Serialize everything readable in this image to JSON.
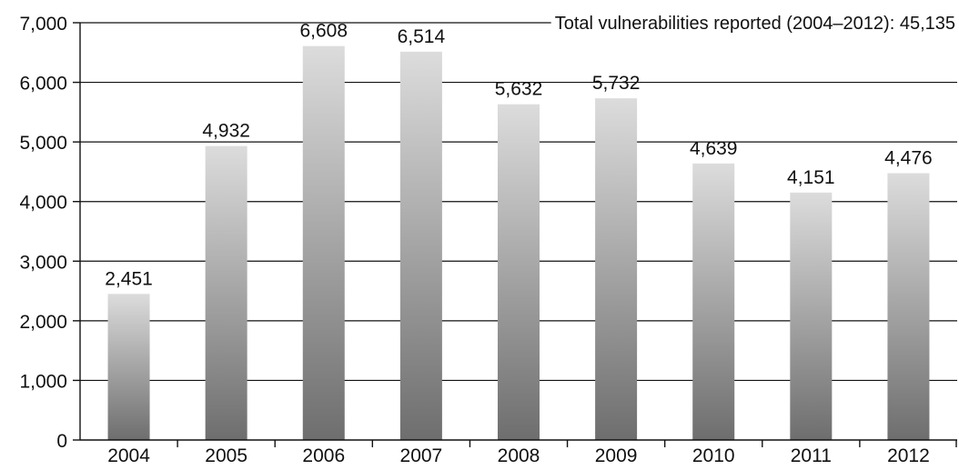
{
  "chart_data": {
    "type": "bar",
    "categories": [
      "2004",
      "2005",
      "2006",
      "2007",
      "2008",
      "2009",
      "2010",
      "2011",
      "2012"
    ],
    "values": [
      2451,
      4932,
      6608,
      6514,
      5632,
      5732,
      4639,
      4151,
      4476
    ],
    "value_labels": [
      "2,451",
      "4,932",
      "6,608",
      "6,514",
      "5,632",
      "5,732",
      "4,639",
      "4,151",
      "4,476"
    ],
    "annotation": "Total vulnerabilities reported (2004–2012): 45,135",
    "title": "",
    "xlabel": "",
    "ylabel": "",
    "ylim": [
      0,
      7000
    ],
    "yticks": [
      0,
      1000,
      2000,
      3000,
      4000,
      5000,
      6000,
      7000
    ],
    "ytick_labels": [
      "0",
      "1,000",
      "2,000",
      "3,000",
      "4,000",
      "5,000",
      "6,000",
      "7,000"
    ],
    "grid": true,
    "colors": {
      "bar_top": "#dcdcdc",
      "bar_bottom": "#6e6e6e",
      "lines": "#111111"
    }
  }
}
